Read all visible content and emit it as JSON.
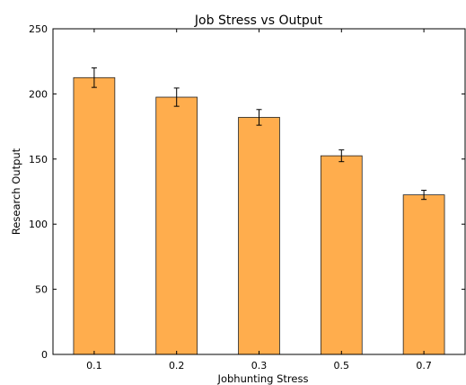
{
  "chart_data": {
    "type": "bar",
    "title": "Job Stress vs Output",
    "xlabel": "Jobhunting Stress",
    "ylabel": "Research Output",
    "categories": [
      "0.1",
      "0.2",
      "0.3",
      "0.5",
      "0.7"
    ],
    "values": [
      212.5,
      197.5,
      182,
      152.5,
      122.5
    ],
    "errors": [
      7.5,
      7,
      6,
      4.5,
      3.5
    ],
    "ylim": [
      0,
      250
    ],
    "yticks": [
      "0",
      "50",
      "100",
      "150",
      "200",
      "250"
    ],
    "grid": false,
    "colors": {
      "bar": "#ffad4d",
      "bar_edge": "#222222",
      "error_bar": "#000000"
    }
  }
}
